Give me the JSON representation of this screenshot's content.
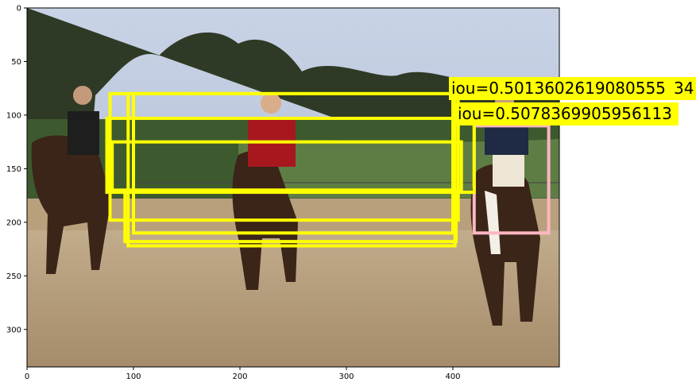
{
  "figure": {
    "x_ticks": [
      "0",
      "100",
      "200",
      "300",
      "400"
    ],
    "y_ticks": [
      "0",
      "50",
      "100",
      "150",
      "200",
      "250",
      "300"
    ],
    "photo_description_icon": "horse-riders-photo"
  },
  "annotations": {
    "iou_labels": [
      {
        "text": "iou=0.5013602619080555",
        "color": "#ffff00"
      },
      {
        "text": "iou=0.5078369905956113",
        "color": "#ffff00"
      }
    ],
    "hidden_label_fragment": "34",
    "box_color_primary": "#ffff00",
    "box_color_reference": "#ffb6c1"
  },
  "chart_data": {
    "type": "image_with_boxes",
    "xlim": [
      0,
      500
    ],
    "ylim": [
      335,
      0
    ],
    "yellow_boxes": [
      [
        78,
        80,
        405,
        198
      ],
      [
        95,
        80,
        402,
        222
      ],
      [
        100,
        80,
        400,
        210
      ],
      [
        75,
        103,
        420,
        172
      ],
      [
        80,
        125,
        408,
        170
      ],
      [
        92,
        170,
        403,
        218
      ]
    ],
    "pink_box": [
      420,
      110,
      490,
      210
    ]
  }
}
